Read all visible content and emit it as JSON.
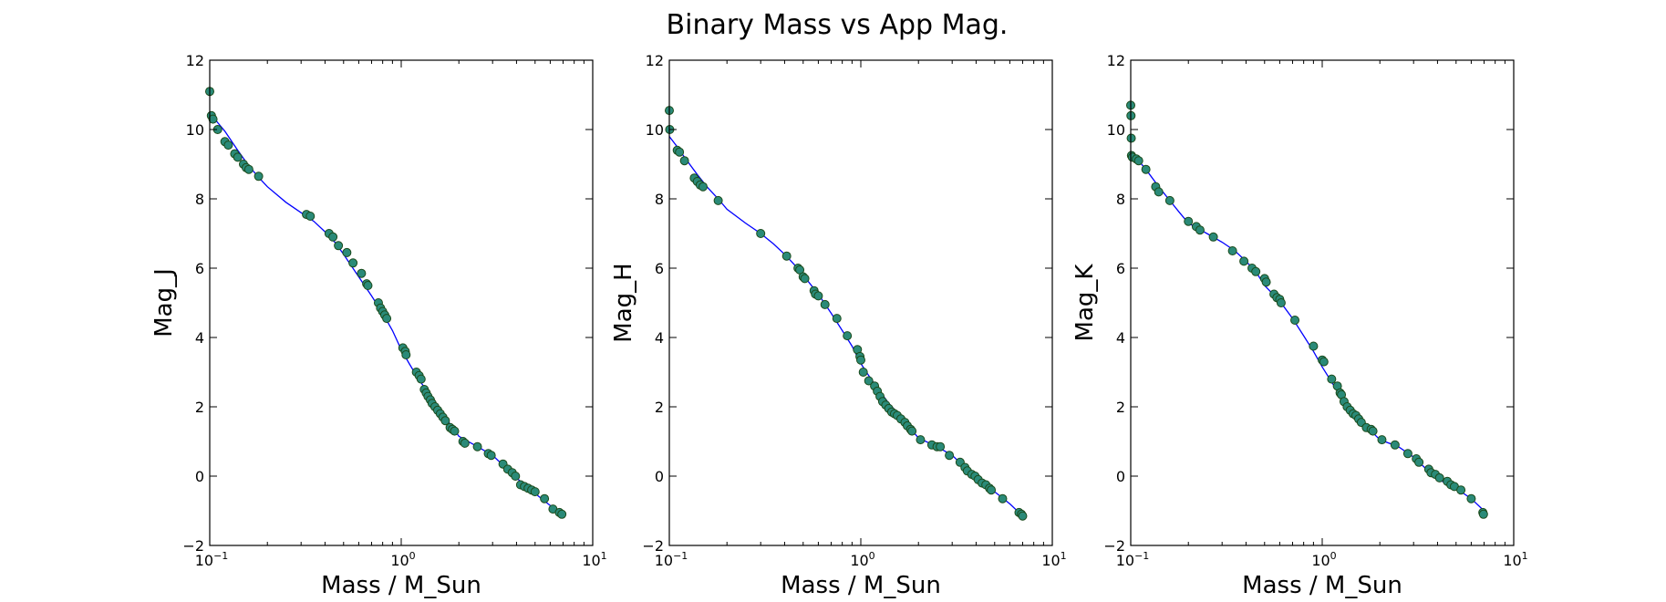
{
  "suptitle": "Binary Mass vs App Mag.",
  "colors": {
    "curve": "#0000ff",
    "point_fill": "#2a8a78",
    "point_edge": "#1e6b1e"
  },
  "chart_data": [
    {
      "type": "scatter",
      "xlabel": "Mass / M_Sun",
      "ylabel": "Mag_J",
      "xscale": "log",
      "xlim": [
        0.1,
        10
      ],
      "ylim": [
        -2,
        12
      ],
      "xticks": [
        {
          "base": "10",
          "exp": "-1",
          "value": 0.1
        },
        {
          "base": "10",
          "exp": "0",
          "value": 1
        },
        {
          "base": "10",
          "exp": "1",
          "value": 10
        }
      ],
      "yticks": [
        -2,
        0,
        2,
        4,
        6,
        8,
        10,
        12
      ],
      "curve": {
        "x": [
          0.1,
          0.11,
          0.12,
          0.14,
          0.16,
          0.18,
          0.2,
          0.25,
          0.3,
          0.35,
          0.4,
          0.45,
          0.5,
          0.6,
          0.7,
          0.8,
          0.9,
          1.0,
          1.1,
          1.2,
          1.4,
          1.6,
          1.8,
          2.0,
          2.5,
          3.0,
          3.5,
          4.0,
          4.5,
          5.0,
          6.0,
          7.0
        ],
        "y": [
          10.5,
          10.2,
          9.95,
          9.4,
          8.95,
          8.62,
          8.35,
          7.9,
          7.6,
          7.35,
          7.05,
          6.75,
          6.4,
          5.75,
          5.2,
          4.7,
          4.2,
          3.65,
          3.25,
          2.9,
          2.35,
          1.9,
          1.5,
          1.15,
          0.85,
          0.6,
          0.25,
          -0.05,
          -0.3,
          -0.5,
          -0.85,
          -1.15
        ]
      },
      "points": {
        "x": [
          0.1,
          0.102,
          0.104,
          0.11,
          0.12,
          0.125,
          0.135,
          0.14,
          0.15,
          0.155,
          0.16,
          0.18,
          0.32,
          0.335,
          0.42,
          0.44,
          0.47,
          0.52,
          0.56,
          0.62,
          0.66,
          0.67,
          0.76,
          0.78,
          0.8,
          0.82,
          0.84,
          1.02,
          1.05,
          1.06,
          1.2,
          1.24,
          1.27,
          1.32,
          1.35,
          1.38,
          1.42,
          1.45,
          1.5,
          1.55,
          1.6,
          1.65,
          1.7,
          1.8,
          1.85,
          1.9,
          2.1,
          2.15,
          2.5,
          2.85,
          2.95,
          3.4,
          3.6,
          3.8,
          3.95,
          4.2,
          4.4,
          4.6,
          4.8,
          5.0,
          5.6,
          6.2,
          6.7,
          6.9
        ],
        "y": [
          11.1,
          10.4,
          10.3,
          10.0,
          9.65,
          9.55,
          9.3,
          9.2,
          9.0,
          8.9,
          8.85,
          8.65,
          7.55,
          7.5,
          7.0,
          6.9,
          6.65,
          6.45,
          6.15,
          5.85,
          5.55,
          5.5,
          5.0,
          4.85,
          4.75,
          4.65,
          4.55,
          3.7,
          3.6,
          3.5,
          3.0,
          2.9,
          2.8,
          2.5,
          2.4,
          2.3,
          2.2,
          2.1,
          2.0,
          1.9,
          1.8,
          1.7,
          1.6,
          1.4,
          1.35,
          1.3,
          1.0,
          0.95,
          0.85,
          0.65,
          0.6,
          0.35,
          0.2,
          0.1,
          0.0,
          -0.25,
          -0.3,
          -0.35,
          -0.4,
          -0.45,
          -0.65,
          -0.95,
          -1.05,
          -1.1
        ]
      }
    },
    {
      "type": "scatter",
      "xlabel": "Mass / M_Sun",
      "ylabel": "Mag_H",
      "xscale": "log",
      "xlim": [
        0.1,
        10
      ],
      "ylim": [
        -2,
        12
      ],
      "xticks": [
        {
          "base": "10",
          "exp": "-1",
          "value": 0.1
        },
        {
          "base": "10",
          "exp": "0",
          "value": 1
        },
        {
          "base": "10",
          "exp": "1",
          "value": 10
        }
      ],
      "yticks": [
        -2,
        0,
        2,
        4,
        6,
        8,
        10,
        12
      ],
      "curve": {
        "x": [
          0.1,
          0.11,
          0.12,
          0.14,
          0.16,
          0.18,
          0.2,
          0.25,
          0.3,
          0.35,
          0.4,
          0.45,
          0.5,
          0.6,
          0.7,
          0.8,
          0.9,
          1.0,
          1.1,
          1.2,
          1.4,
          1.6,
          1.8,
          2.0,
          2.5,
          3.0,
          3.5,
          4.0,
          4.5,
          5.0,
          6.0,
          7.0
        ],
        "y": [
          9.8,
          9.5,
          9.2,
          8.7,
          8.3,
          8.0,
          7.7,
          7.3,
          7.0,
          6.7,
          6.4,
          6.1,
          5.8,
          5.25,
          4.7,
          4.2,
          3.75,
          3.25,
          2.9,
          2.6,
          2.1,
          1.75,
          1.4,
          1.1,
          0.85,
          0.6,
          0.25,
          -0.05,
          -0.3,
          -0.45,
          -0.8,
          -1.15
        ]
      },
      "points": {
        "x": [
          0.1,
          0.1005,
          0.11,
          0.113,
          0.12,
          0.135,
          0.14,
          0.145,
          0.15,
          0.18,
          0.3,
          0.41,
          0.47,
          0.48,
          0.5,
          0.51,
          0.57,
          0.58,
          0.6,
          0.65,
          0.75,
          0.85,
          0.96,
          0.99,
          1.0,
          1.03,
          1.1,
          1.18,
          1.22,
          1.26,
          1.3,
          1.35,
          1.4,
          1.45,
          1.5,
          1.55,
          1.62,
          1.7,
          1.75,
          1.82,
          1.85,
          2.05,
          2.35,
          2.5,
          2.6,
          2.9,
          3.3,
          3.5,
          3.6,
          3.8,
          3.95,
          4.1,
          4.3,
          4.5,
          4.7,
          4.8,
          5.5,
          6.7,
          6.9,
          7.0
        ],
        "y": [
          10.55,
          10.0,
          9.4,
          9.35,
          9.1,
          8.6,
          8.5,
          8.4,
          8.35,
          7.95,
          7.0,
          6.35,
          6.0,
          5.95,
          5.75,
          5.7,
          5.35,
          5.25,
          5.2,
          4.95,
          4.55,
          4.05,
          3.65,
          3.45,
          3.35,
          3.0,
          2.75,
          2.6,
          2.45,
          2.3,
          2.15,
          2.05,
          1.95,
          1.85,
          1.8,
          1.75,
          1.65,
          1.55,
          1.45,
          1.35,
          1.3,
          1.05,
          0.9,
          0.85,
          0.85,
          0.6,
          0.4,
          0.25,
          0.15,
          0.05,
          0.0,
          -0.1,
          -0.2,
          -0.25,
          -0.35,
          -0.4,
          -0.65,
          -1.05,
          -1.1,
          -1.15
        ]
      }
    },
    {
      "type": "scatter",
      "xlabel": "Mass / M_Sun",
      "ylabel": "Mag_K",
      "xscale": "log",
      "xlim": [
        0.1,
        10
      ],
      "ylim": [
        -2,
        12
      ],
      "xticks": [
        {
          "base": "10",
          "exp": "-1",
          "value": 0.1
        },
        {
          "base": "10",
          "exp": "0",
          "value": 1
        },
        {
          "base": "10",
          "exp": "1",
          "value": 10
        }
      ],
      "yticks": [
        -2,
        0,
        2,
        4,
        6,
        8,
        10,
        12
      ],
      "curve": {
        "x": [
          0.1,
          0.105,
          0.11,
          0.12,
          0.14,
          0.16,
          0.18,
          0.2,
          0.25,
          0.3,
          0.35,
          0.4,
          0.45,
          0.5,
          0.6,
          0.7,
          0.8,
          0.9,
          1.0,
          1.2,
          1.4,
          1.6,
          1.8,
          2.0,
          2.5,
          3.0,
          3.5,
          4.0,
          4.5,
          5.0,
          6.0,
          7.0
        ],
        "y": [
          9.3,
          9.2,
          9.1,
          8.85,
          8.35,
          7.95,
          7.6,
          7.3,
          7.0,
          6.75,
          6.5,
          6.2,
          5.9,
          5.5,
          5.05,
          4.55,
          4.05,
          3.6,
          3.15,
          2.45,
          1.9,
          1.55,
          1.3,
          1.05,
          0.85,
          0.55,
          0.2,
          -0.05,
          -0.25,
          -0.35,
          -0.65,
          -1.0
        ]
      },
      "points": {
        "x": [
          0.1,
          0.1003,
          0.1006,
          0.1009,
          0.102,
          0.107,
          0.11,
          0.12,
          0.135,
          0.14,
          0.16,
          0.2,
          0.22,
          0.23,
          0.27,
          0.34,
          0.39,
          0.43,
          0.45,
          0.5,
          0.51,
          0.56,
          0.58,
          0.6,
          0.61,
          0.72,
          0.9,
          1.0,
          1.02,
          1.12,
          1.2,
          1.24,
          1.26,
          1.3,
          1.35,
          1.4,
          1.45,
          1.5,
          1.55,
          1.6,
          1.7,
          1.8,
          1.84,
          2.05,
          2.4,
          2.8,
          3.1,
          3.2,
          3.6,
          3.7,
          3.9,
          4.1,
          4.5,
          4.7,
          4.9,
          5.3,
          6.0,
          6.9,
          6.95
        ],
        "y": [
          10.7,
          10.4,
          9.75,
          9.25,
          9.2,
          9.15,
          9.1,
          8.85,
          8.35,
          8.2,
          7.95,
          7.35,
          7.2,
          7.1,
          6.9,
          6.5,
          6.2,
          6.0,
          5.9,
          5.7,
          5.6,
          5.25,
          5.15,
          5.1,
          5.0,
          4.5,
          3.75,
          3.35,
          3.3,
          2.8,
          2.6,
          2.4,
          2.35,
          2.15,
          2.0,
          1.9,
          1.8,
          1.75,
          1.65,
          1.55,
          1.4,
          1.35,
          1.3,
          1.05,
          0.9,
          0.65,
          0.5,
          0.4,
          0.2,
          0.1,
          0.05,
          -0.05,
          -0.15,
          -0.25,
          -0.3,
          -0.4,
          -0.65,
          -1.05,
          -1.1
        ]
      }
    }
  ]
}
